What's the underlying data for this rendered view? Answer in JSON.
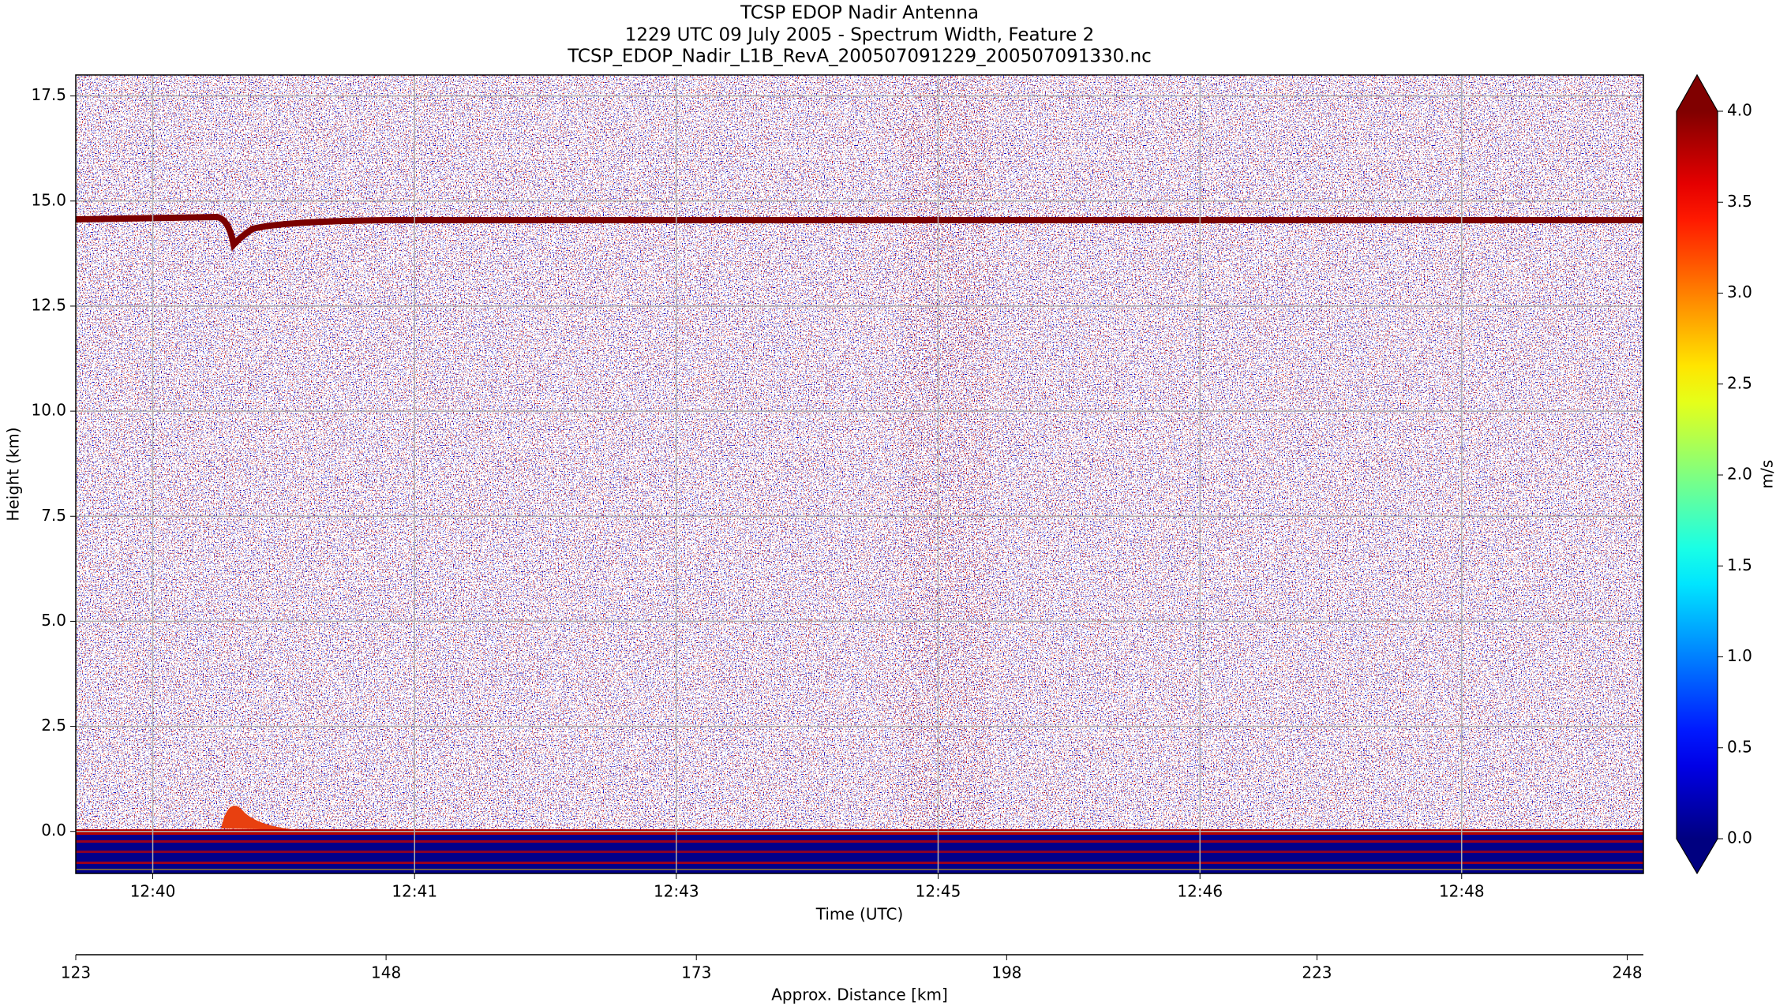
{
  "chart_data": {
    "type": "heatmap",
    "title": "TCSP EDOP Nadir Antenna",
    "subtitle": "1229 UTC 09 July 2005 - Spectrum Width, Feature 2",
    "filename": "TCSP_EDOP_Nadir_L1B_RevA_200507091229_200507091330.nc",
    "xlabel": "Time (UTC)",
    "ylabel": "Height (km)",
    "x2label": "Approx. Distance [km]",
    "colorbar_label": "m/s",
    "colormap": "jet",
    "grid": true,
    "xlim": [
      39.51,
      49.49
    ],
    "xticks": [
      {
        "value": 40,
        "label": "12:40"
      },
      {
        "value": 41.667,
        "label": "12:41"
      },
      {
        "value": 43.333,
        "label": "12:43"
      },
      {
        "value": 45,
        "label": "12:45"
      },
      {
        "value": 46.667,
        "label": "12:46"
      },
      {
        "value": 48.333,
        "label": "12:48"
      }
    ],
    "ylim": [
      -1,
      18
    ],
    "yticks": [
      {
        "value": 0,
        "label": "0.0"
      },
      2.5,
      {
        "value": 5,
        "label": "5.0"
      },
      7.5,
      {
        "value": 10,
        "label": "10.0"
      },
      12.5,
      {
        "value": 15,
        "label": "15.0"
      },
      17.5
    ],
    "x2lim": [
      123,
      249.3
    ],
    "x2ticks": [
      123,
      148,
      173,
      198,
      223,
      248
    ],
    "clim": [
      0,
      4
    ],
    "cticks": [
      {
        "value": 0,
        "label": "0.0"
      },
      0.5,
      {
        "value": 1,
        "label": "1.0"
      },
      1.5,
      {
        "value": 2,
        "label": "2.0"
      },
      2.5,
      {
        "value": 3,
        "label": "3.0"
      },
      3.5,
      {
        "value": 4,
        "label": "4.0"
      }
    ]
  }
}
